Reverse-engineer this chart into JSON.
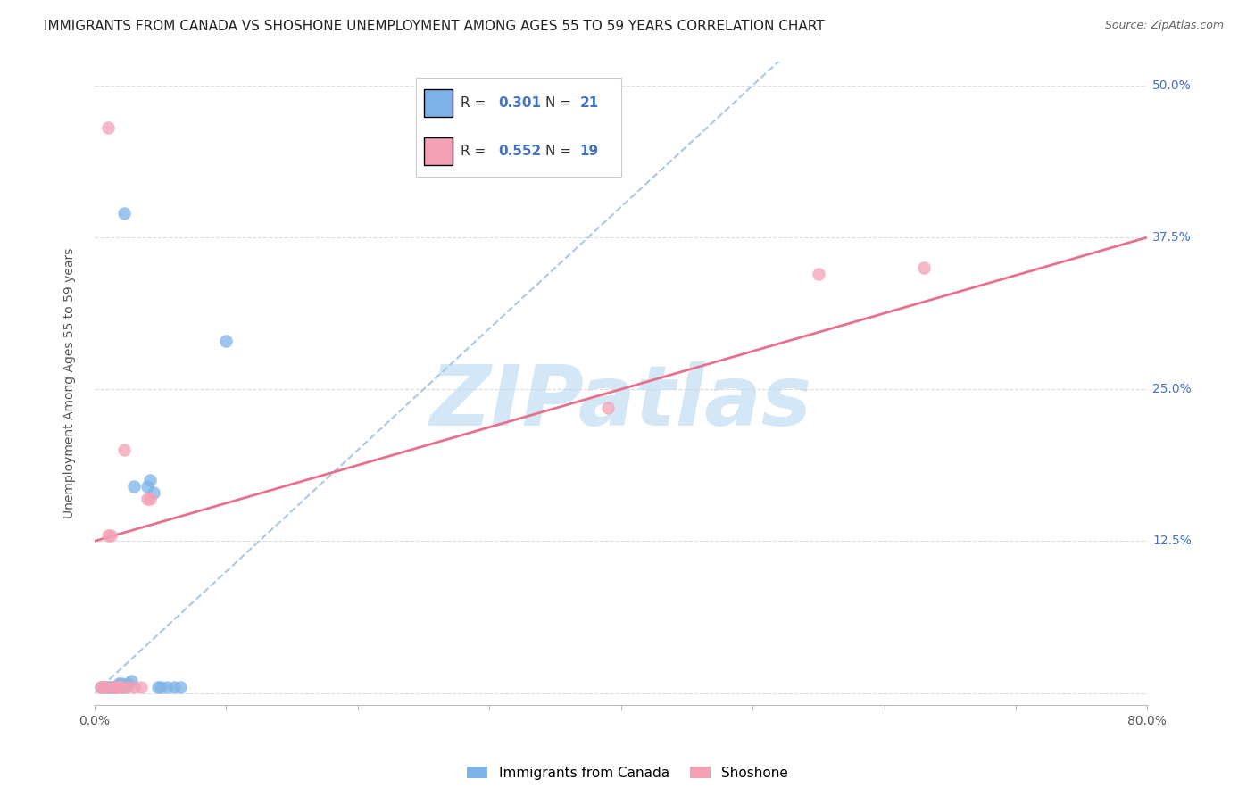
{
  "title": "IMMIGRANTS FROM CANADA VS SHOSHONE UNEMPLOYMENT AMONG AGES 55 TO 59 YEARS CORRELATION CHART",
  "source": "Source: ZipAtlas.com",
  "ylabel": "Unemployment Among Ages 55 to 59 years",
  "xlim": [
    0.0,
    0.8
  ],
  "ylim": [
    -0.01,
    0.52
  ],
  "yticks": [
    0.0,
    0.125,
    0.25,
    0.375,
    0.5
  ],
  "ytick_labels": [
    "",
    "12.5%",
    "25.0%",
    "37.5%",
    "50.0%"
  ],
  "xticks": [
    0.0,
    0.1,
    0.2,
    0.3,
    0.4,
    0.5,
    0.6,
    0.7,
    0.8
  ],
  "blue_R": 0.301,
  "blue_N": 21,
  "pink_R": 0.552,
  "pink_N": 19,
  "blue_label": "Immigrants from Canada",
  "pink_label": "Shoshone",
  "blue_color": "#7eb3e8",
  "blue_line_color": "#7eb3e8",
  "pink_color": "#f4a0b5",
  "pink_line_color": "#e8708a",
  "blue_scatter": [
    [
      0.005,
      0.005
    ],
    [
      0.008,
      0.005
    ],
    [
      0.01,
      0.005
    ],
    [
      0.012,
      0.005
    ],
    [
      0.015,
      0.005
    ],
    [
      0.018,
      0.008
    ],
    [
      0.02,
      0.008
    ],
    [
      0.022,
      0.005
    ],
    [
      0.025,
      0.008
    ],
    [
      0.028,
      0.01
    ],
    [
      0.03,
      0.17
    ],
    [
      0.04,
      0.17
    ],
    [
      0.042,
      0.175
    ],
    [
      0.045,
      0.165
    ],
    [
      0.048,
      0.005
    ],
    [
      0.05,
      0.005
    ],
    [
      0.055,
      0.005
    ],
    [
      0.06,
      0.005
    ],
    [
      0.065,
      0.005
    ],
    [
      0.022,
      0.395
    ],
    [
      0.1,
      0.29
    ]
  ],
  "pink_scatter": [
    [
      0.005,
      0.005
    ],
    [
      0.006,
      0.005
    ],
    [
      0.008,
      0.005
    ],
    [
      0.01,
      0.13
    ],
    [
      0.012,
      0.13
    ],
    [
      0.014,
      0.005
    ],
    [
      0.016,
      0.005
    ],
    [
      0.018,
      0.005
    ],
    [
      0.02,
      0.005
    ],
    [
      0.022,
      0.2
    ],
    [
      0.025,
      0.005
    ],
    [
      0.03,
      0.005
    ],
    [
      0.035,
      0.005
    ],
    [
      0.04,
      0.16
    ],
    [
      0.042,
      0.16
    ],
    [
      0.01,
      0.465
    ],
    [
      0.55,
      0.345
    ],
    [
      0.63,
      0.35
    ],
    [
      0.39,
      0.235
    ]
  ],
  "blue_line_x": [
    0.0,
    0.8
  ],
  "blue_line_y": [
    0.0,
    0.8
  ],
  "pink_line_x0": 0.0,
  "pink_line_y0": 0.125,
  "pink_line_x1": 0.8,
  "pink_line_y1": 0.375,
  "watermark": "ZIPatlas",
  "watermark_color": "#b8d8f0",
  "background_color": "#ffffff",
  "grid_color": "#dddddd",
  "title_fontsize": 11,
  "axis_label_fontsize": 10,
  "tick_fontsize": 10,
  "legend_fontsize": 11,
  "source_fontsize": 9
}
